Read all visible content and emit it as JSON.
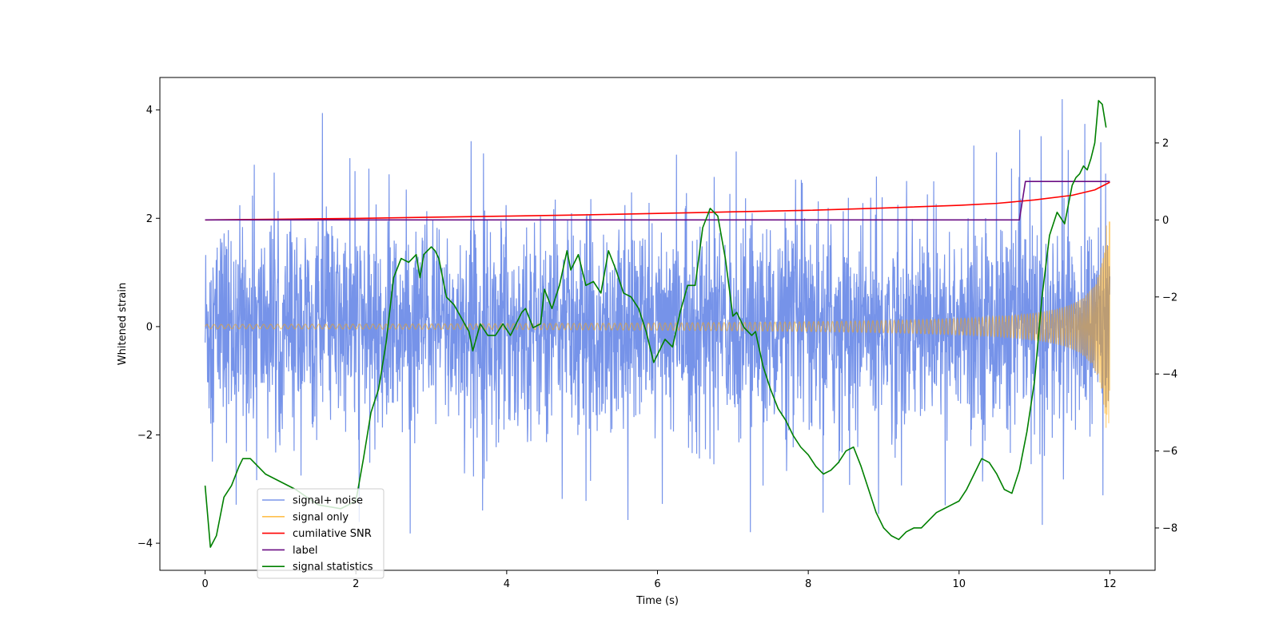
{
  "chart_data": {
    "type": "line",
    "xlabel": "Time (s)",
    "ylabel": "Whitened strain",
    "xlim": [
      -0.6,
      12.6
    ],
    "ylim": [
      -4.5,
      4.6
    ],
    "y2lim": [
      -9.1,
      3.7
    ],
    "x_ticks": [
      0,
      2,
      4,
      6,
      8,
      10,
      12
    ],
    "y_ticks": [
      -4,
      -2,
      0,
      2,
      4
    ],
    "y2_ticks": [
      -8,
      -6,
      -4,
      -2,
      0,
      2
    ],
    "legend_position": "lower-left",
    "series": [
      {
        "name": "signal+ noise",
        "axis": "left",
        "color": "#4169E1",
        "description": "noisy whitened strain, roughly symmetric about 0, amplitude ~±2.5 with spikes up to ~4.2",
        "x_range": [
          0,
          12
        ],
        "center": 0,
        "envelope": 1.9,
        "peak": 4.2
      },
      {
        "name": "signal only",
        "axis": "left",
        "color": "#FFA500",
        "description": "chirp signal, small oscillation growing sharply near t=12",
        "x_range": [
          0,
          12
        ],
        "amplitude_start": 0.04,
        "amplitude_end": 1.95
      },
      {
        "name": "cumilative SNR",
        "axis": "right",
        "color": "#FF0000",
        "x": [
          0,
          1,
          2,
          3,
          4,
          5,
          6,
          7,
          8,
          9,
          10,
          10.5,
          11,
          11.5,
          11.8,
          12
        ],
        "y": [
          0,
          0.02,
          0.04,
          0.07,
          0.1,
          0.13,
          0.17,
          0.21,
          0.25,
          0.31,
          0.38,
          0.43,
          0.52,
          0.64,
          0.78,
          0.98
        ]
      },
      {
        "name": "label",
        "axis": "right",
        "color": "#6A0D83",
        "x": [
          0,
          10.8,
          10.88,
          12
        ],
        "y": [
          0,
          0,
          1,
          1
        ]
      },
      {
        "name": "signal statistics",
        "axis": "right",
        "color": "#008000",
        "x": [
          0,
          0.07,
          0.15,
          0.25,
          0.35,
          0.45,
          0.5,
          0.6,
          0.7,
          0.8,
          1.0,
          1.2,
          1.5,
          1.8,
          2.0,
          2.1,
          2.2,
          2.3,
          2.4,
          2.5,
          2.6,
          2.7,
          2.8,
          2.85,
          2.9,
          3.0,
          3.05,
          3.1,
          3.2,
          3.3,
          3.5,
          3.55,
          3.65,
          3.75,
          3.85,
          3.95,
          4.05,
          4.1,
          4.2,
          4.25,
          4.35,
          4.45,
          4.5,
          4.6,
          4.7,
          4.8,
          4.85,
          4.95,
          5.05,
          5.15,
          5.25,
          5.35,
          5.45,
          5.55,
          5.65,
          5.75,
          5.85,
          5.95,
          6.0,
          6.1,
          6.2,
          6.3,
          6.4,
          6.5,
          6.6,
          6.7,
          6.8,
          6.9,
          7.0,
          7.05,
          7.15,
          7.25,
          7.3,
          7.4,
          7.5,
          7.6,
          7.7,
          7.8,
          7.9,
          8.0,
          8.1,
          8.2,
          8.3,
          8.4,
          8.5,
          8.6,
          8.7,
          8.8,
          8.9,
          9.0,
          9.1,
          9.2,
          9.3,
          9.4,
          9.5,
          9.6,
          9.7,
          9.8,
          9.9,
          10.0,
          10.1,
          10.2,
          10.3,
          10.4,
          10.5,
          10.6,
          10.7,
          10.8,
          10.9,
          11.0,
          11.1,
          11.2,
          11.3,
          11.4,
          11.5,
          11.55,
          11.6,
          11.65,
          11.7,
          11.75,
          11.8,
          11.85,
          11.9,
          11.95
        ],
        "y": [
          -6.9,
          -8.5,
          -8.2,
          -7.2,
          -6.9,
          -6.4,
          -6.2,
          -6.2,
          -6.4,
          -6.6,
          -6.8,
          -7.0,
          -7.4,
          -7.5,
          -7.3,
          -6.2,
          -5.0,
          -4.4,
          -3.2,
          -1.5,
          -1.0,
          -1.1,
          -0.9,
          -1.5,
          -0.9,
          -0.7,
          -0.8,
          -1.0,
          -2.0,
          -2.2,
          -2.9,
          -3.4,
          -2.7,
          -3.0,
          -3.0,
          -2.7,
          -3.0,
          -2.8,
          -2.4,
          -2.3,
          -2.8,
          -2.7,
          -1.8,
          -2.3,
          -1.7,
          -0.8,
          -1.3,
          -0.9,
          -1.7,
          -1.6,
          -1.9,
          -0.8,
          -1.3,
          -1.9,
          -2.0,
          -2.3,
          -2.9,
          -3.7,
          -3.5,
          -3.1,
          -3.3,
          -2.4,
          -1.7,
          -1.7,
          -0.2,
          0.3,
          0.1,
          -1.0,
          -2.5,
          -2.4,
          -2.8,
          -3.0,
          -2.9,
          -3.8,
          -4.4,
          -4.9,
          -5.2,
          -5.6,
          -5.9,
          -6.1,
          -6.4,
          -6.6,
          -6.5,
          -6.3,
          -6.0,
          -5.9,
          -6.4,
          -7.0,
          -7.6,
          -8.0,
          -8.2,
          -8.3,
          -8.1,
          -8.0,
          -8.0,
          -7.8,
          -7.6,
          -7.5,
          -7.4,
          -7.3,
          -7.0,
          -6.6,
          -6.2,
          -6.3,
          -6.6,
          -7.0,
          -7.1,
          -6.5,
          -5.5,
          -4.2,
          -2.0,
          -0.4,
          0.2,
          -0.1,
          0.9,
          1.1,
          1.2,
          1.4,
          1.3,
          1.6,
          2.0,
          3.1,
          3.0,
          2.4
        ]
      }
    ]
  }
}
